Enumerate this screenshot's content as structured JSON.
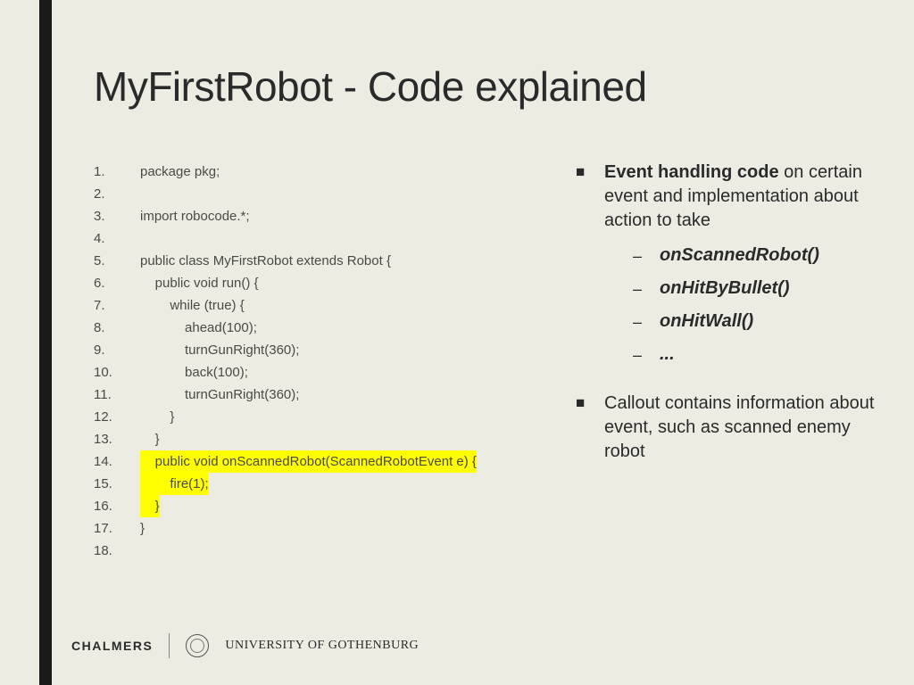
{
  "title": "MyFirstRobot - Code explained",
  "code": [
    {
      "n": "1.",
      "t": "package pkg;",
      "hl": false
    },
    {
      "n": "2.",
      "t": "",
      "hl": false
    },
    {
      "n": "3.",
      "t": "import robocode.*;",
      "hl": false
    },
    {
      "n": "4.",
      "t": "",
      "hl": false
    },
    {
      "n": "5.",
      "t": "public class MyFirstRobot extends Robot {",
      "hl": false
    },
    {
      "n": "6.",
      "t": "    public void run() {",
      "hl": false
    },
    {
      "n": "7.",
      "t": "        while (true) {",
      "hl": false
    },
    {
      "n": "8.",
      "t": "            ahead(100);",
      "hl": false
    },
    {
      "n": "9.",
      "t": "            turnGunRight(360);",
      "hl": false
    },
    {
      "n": "10.",
      "t": "            back(100);",
      "hl": false
    },
    {
      "n": "11.",
      "t": "            turnGunRight(360);",
      "hl": false
    },
    {
      "n": "12.",
      "t": "        }",
      "hl": false
    },
    {
      "n": "13.",
      "t": "    }",
      "hl": false
    },
    {
      "n": "14.",
      "t": "    public void onScannedRobot(ScannedRobotEvent e) {",
      "hl": true
    },
    {
      "n": "15.",
      "t": "        fire(1);",
      "hl": true
    },
    {
      "n": "16.",
      "t": "    }",
      "hl": true
    },
    {
      "n": "17.",
      "t": "}",
      "hl": false
    },
    {
      "n": "18.",
      "t": "",
      "hl": false
    }
  ],
  "bullets": {
    "b1": {
      "bold": "Event handling code",
      "rest": " on certain event and implementation about action to take",
      "subs": [
        "onScannedRobot()",
        "onHitByBullet()",
        "onHitWall()",
        "..."
      ]
    },
    "b2": "Callout contains information about event, such as scanned enemy robot"
  },
  "footer": {
    "chalmers": "CHALMERS",
    "gu": "UNIVERSITY OF GOTHENBURG"
  },
  "colors": {
    "bg": "#edece3",
    "accent": "#1a1a1a",
    "highlight": "#ffff00",
    "text": "#2a2a2a",
    "code_text": "#4a4a46"
  }
}
